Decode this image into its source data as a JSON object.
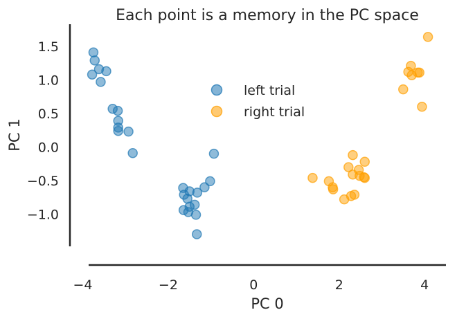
{
  "chart_data": {
    "type": "scatter",
    "title": "Each point is a memory in the PC space",
    "xlabel": "PC 0",
    "ylabel": "PC 1",
    "xlim": [
      -4.3,
      4.5
    ],
    "ylim": [
      -1.48,
      1.83
    ],
    "x_ticks": [
      -4,
      -2,
      0,
      2,
      4
    ],
    "y_ticks": [
      -1.0,
      -0.5,
      0.0,
      0.5,
      1.0,
      1.5
    ],
    "x_tick_labels": [
      "−4",
      "−2",
      "0",
      "2",
      "4"
    ],
    "y_tick_labels": [
      "−1.0",
      "−0.5",
      "0.0",
      "0.5",
      "1.0",
      "1.5"
    ],
    "legend_position": "upper-center",
    "series": [
      {
        "name": "left trial",
        "color": "#1f77b4",
        "points": [
          [
            -3.75,
            1.41
          ],
          [
            -3.72,
            1.29
          ],
          [
            -3.62,
            1.16
          ],
          [
            -3.45,
            1.13
          ],
          [
            -3.78,
            1.08
          ],
          [
            -3.58,
            0.97
          ],
          [
            -3.3,
            0.57
          ],
          [
            -3.18,
            0.54
          ],
          [
            -3.17,
            0.39
          ],
          [
            -3.17,
            0.29
          ],
          [
            -3.17,
            0.24
          ],
          [
            -2.93,
            0.23
          ],
          [
            -2.83,
            -0.09
          ],
          [
            -0.93,
            -0.1
          ],
          [
            -1.02,
            -0.51
          ],
          [
            -1.15,
            -0.6
          ],
          [
            -1.65,
            -0.61
          ],
          [
            -1.5,
            -0.66
          ],
          [
            -1.63,
            -0.71
          ],
          [
            -1.32,
            -0.68
          ],
          [
            -1.55,
            -0.77
          ],
          [
            -1.38,
            -0.86
          ],
          [
            -1.5,
            -0.89
          ],
          [
            -1.64,
            -0.94
          ],
          [
            -1.53,
            -0.97
          ],
          [
            -1.35,
            -1.01
          ],
          [
            -1.33,
            -1.3
          ]
        ]
      },
      {
        "name": "right trial",
        "color": "#ff9f00",
        "points": [
          [
            4.08,
            1.64
          ],
          [
            3.68,
            1.21
          ],
          [
            3.62,
            1.12
          ],
          [
            3.84,
            1.11
          ],
          [
            3.88,
            1.11
          ],
          [
            3.7,
            1.07
          ],
          [
            3.5,
            0.86
          ],
          [
            3.94,
            0.6
          ],
          [
            2.32,
            -0.12
          ],
          [
            2.6,
            -0.22
          ],
          [
            2.22,
            -0.3
          ],
          [
            2.46,
            -0.34
          ],
          [
            2.32,
            -0.41
          ],
          [
            2.48,
            -0.43
          ],
          [
            2.58,
            -0.45
          ],
          [
            2.6,
            -0.46
          ],
          [
            1.38,
            -0.46
          ],
          [
            1.76,
            -0.51
          ],
          [
            1.85,
            -0.6
          ],
          [
            1.86,
            -0.63
          ],
          [
            2.36,
            -0.71
          ],
          [
            2.28,
            -0.73
          ],
          [
            2.12,
            -0.78
          ]
        ]
      }
    ]
  }
}
